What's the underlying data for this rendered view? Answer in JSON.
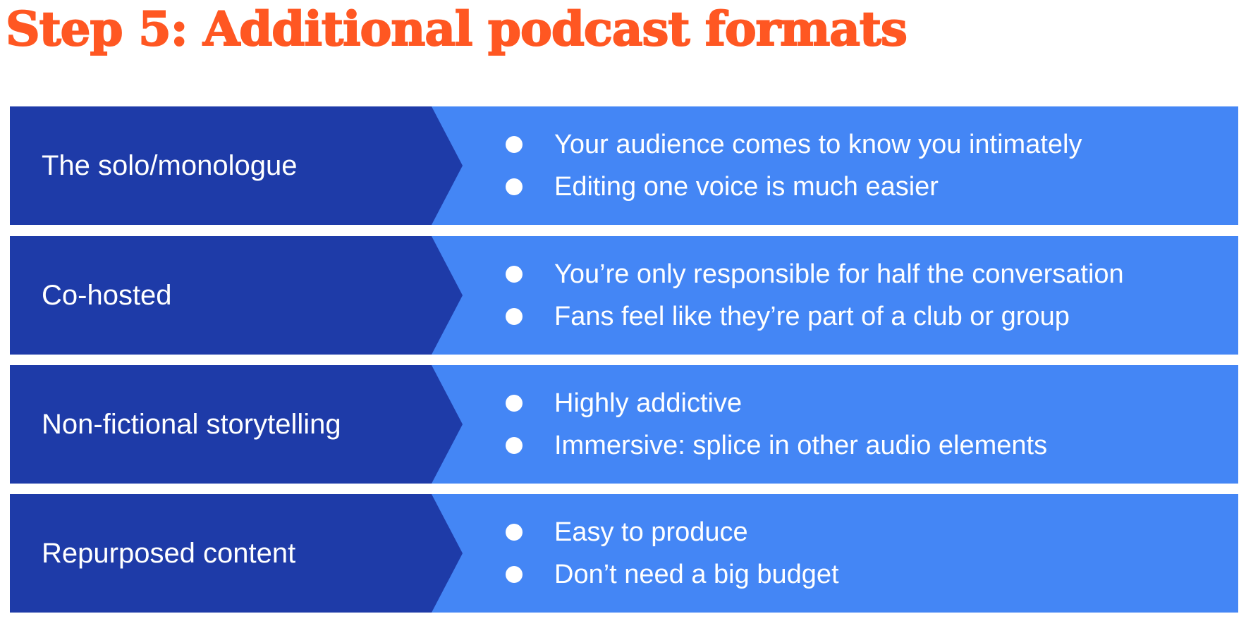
{
  "title": "Step 5: Additional podcast formats",
  "colors": {
    "title": "#ff5722",
    "dark_band": "#1e3ba8",
    "light_band": "#4486f5",
    "text": "#ffffff"
  },
  "formats": [
    {
      "label": "The solo/monologue",
      "points": [
        "Your audience comes to know you intimately",
        "Editing one voice is much easier"
      ]
    },
    {
      "label": "Co-hosted",
      "points": [
        "You’re only responsible for half the conversation",
        "Fans feel like they’re part of a club or group"
      ]
    },
    {
      "label": "Non-fictional storytelling",
      "points": [
        "Highly addictive",
        "Immersive: splice in other audio elements"
      ]
    },
    {
      "label": "Repurposed content",
      "points": [
        "Easy to produce",
        "Don’t need a big budget"
      ]
    }
  ]
}
